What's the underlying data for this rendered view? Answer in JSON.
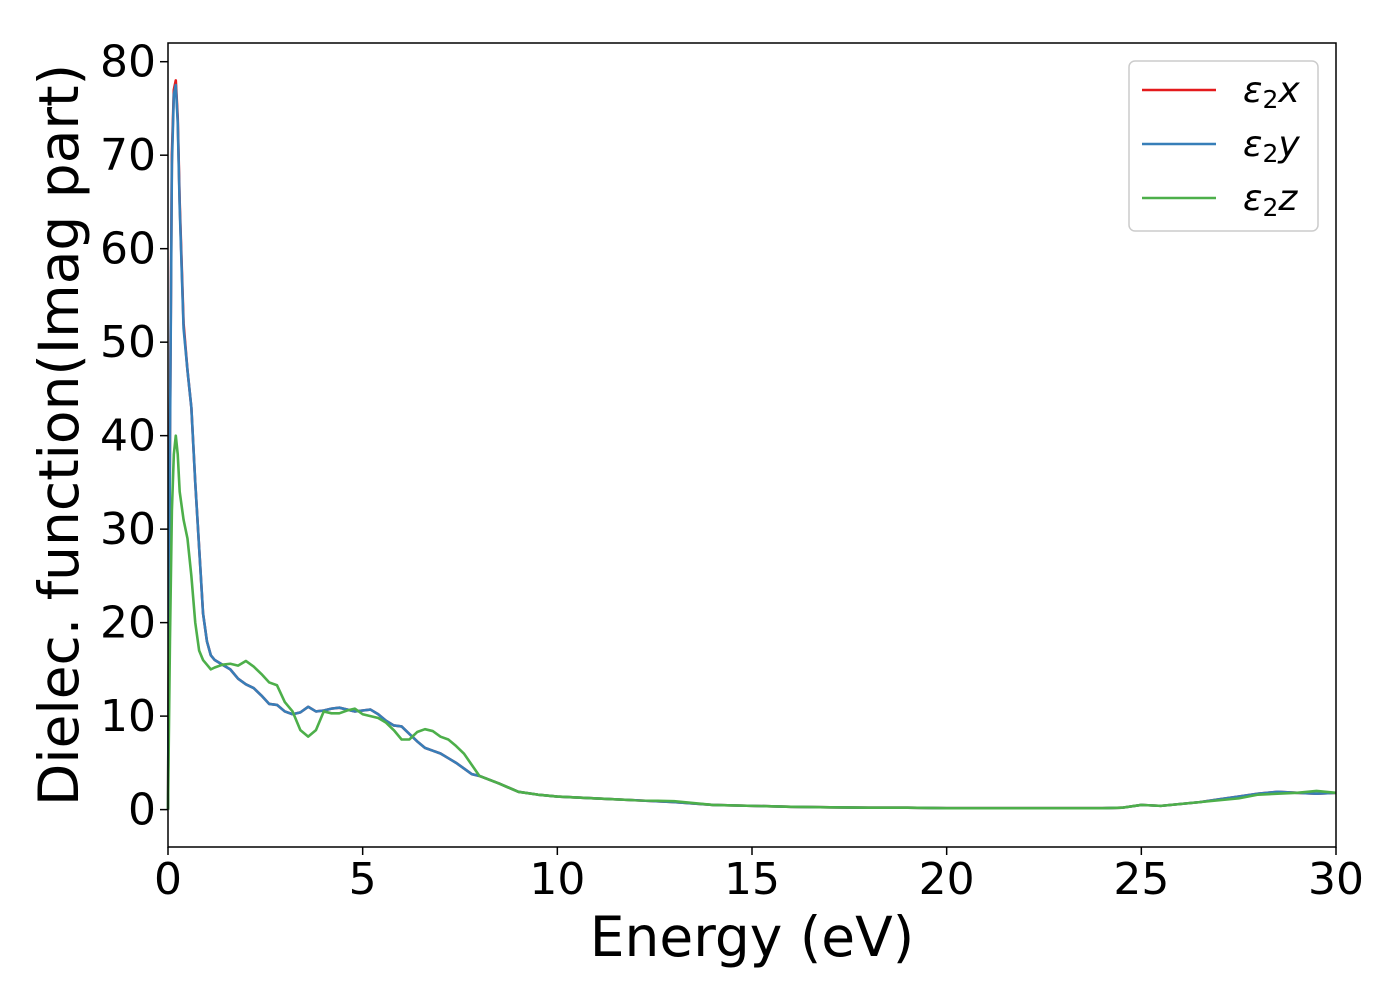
{
  "chart_data": {
    "type": "line",
    "title": "",
    "xlabel": "Energy (eV)",
    "ylabel": "Dielec. function(Imag part)",
    "xlim": [
      0,
      30
    ],
    "ylim": [
      -4,
      82
    ],
    "xticks": [
      0,
      5,
      10,
      15,
      20,
      25,
      30
    ],
    "yticks": [
      0,
      10,
      20,
      30,
      40,
      50,
      60,
      70,
      80
    ],
    "grid": false,
    "legend_position": "top-right",
    "series": [
      {
        "name": "ε2x",
        "legend_base": "ε",
        "legend_sub": "2",
        "legend_var": "x",
        "color": "#e41a1c",
        "x": [
          0,
          0.05,
          0.1,
          0.15,
          0.2,
          0.25,
          0.3,
          0.4,
          0.5,
          0.6,
          0.7,
          0.8,
          0.9,
          1.0,
          1.1,
          1.2,
          1.4,
          1.6,
          1.8,
          2.0,
          2.2,
          2.4,
          2.6,
          2.8,
          3.0,
          3.2,
          3.4,
          3.6,
          3.8,
          4.0,
          4.2,
          4.4,
          4.6,
          4.8,
          5.0,
          5.2,
          5.4,
          5.6,
          5.8,
          6.0,
          6.2,
          6.4,
          6.6,
          6.8,
          7.0,
          7.2,
          7.4,
          7.6,
          7.8,
          8.0,
          8.5,
          9.0,
          9.5,
          10,
          11,
          12,
          13,
          14,
          15,
          16,
          17,
          18,
          19,
          20,
          21,
          22,
          23,
          24,
          24.5,
          25,
          25.5,
          26,
          26.5,
          27,
          27.5,
          28,
          28.5,
          29,
          29.5,
          30
        ],
        "y": [
          0,
          40,
          70,
          77,
          78,
          74,
          65,
          52,
          47,
          43,
          35,
          28,
          21,
          18,
          16.5,
          16,
          15.5,
          15,
          14,
          13.4,
          13,
          12.2,
          11.3,
          11.2,
          10.5,
          10.2,
          10.4,
          11,
          10.5,
          10.6,
          10.8,
          10.9,
          10.7,
          10.5,
          10.6,
          10.7,
          10.2,
          9.5,
          9.0,
          8.9,
          8.1,
          7.3,
          6.6,
          6.3,
          6.0,
          5.5,
          5.0,
          4.4,
          3.8,
          3.6,
          2.8,
          1.9,
          1.6,
          1.4,
          1.2,
          1.0,
          0.8,
          0.5,
          0.4,
          0.3,
          0.25,
          0.2,
          0.2,
          0.15,
          0.15,
          0.15,
          0.15,
          0.15,
          0.2,
          0.5,
          0.4,
          0.6,
          0.8,
          1.1,
          1.4,
          1.7,
          1.9,
          1.8,
          1.7,
          1.8
        ]
      },
      {
        "name": "ε2y",
        "legend_base": "ε",
        "legend_sub": "2",
        "legend_var": "y",
        "color": "#377eb8",
        "x": [
          0,
          0.05,
          0.1,
          0.15,
          0.2,
          0.25,
          0.3,
          0.4,
          0.5,
          0.6,
          0.7,
          0.8,
          0.9,
          1.0,
          1.1,
          1.2,
          1.4,
          1.6,
          1.8,
          2.0,
          2.2,
          2.4,
          2.6,
          2.8,
          3.0,
          3.2,
          3.4,
          3.6,
          3.8,
          4.0,
          4.2,
          4.4,
          4.6,
          4.8,
          5.0,
          5.2,
          5.4,
          5.6,
          5.8,
          6.0,
          6.2,
          6.4,
          6.6,
          6.8,
          7.0,
          7.2,
          7.4,
          7.6,
          7.8,
          8.0,
          8.5,
          9.0,
          9.5,
          10,
          11,
          12,
          13,
          14,
          15,
          16,
          17,
          18,
          19,
          20,
          21,
          22,
          23,
          24,
          24.5,
          25,
          25.5,
          26,
          26.5,
          27,
          27.5,
          28,
          28.5,
          29,
          29.5,
          30
        ],
        "y": [
          0,
          39,
          69,
          76.5,
          77.5,
          73.5,
          64.5,
          51.5,
          47,
          43,
          35,
          28,
          21,
          18,
          16.5,
          16,
          15.5,
          15,
          14,
          13.4,
          13,
          12.2,
          11.3,
          11.2,
          10.5,
          10.2,
          10.4,
          11,
          10.5,
          10.6,
          10.8,
          10.9,
          10.7,
          10.5,
          10.6,
          10.7,
          10.2,
          9.5,
          9.0,
          8.9,
          8.1,
          7.3,
          6.6,
          6.3,
          6.0,
          5.5,
          5.0,
          4.4,
          3.8,
          3.6,
          2.8,
          1.9,
          1.6,
          1.4,
          1.2,
          1.0,
          0.8,
          0.5,
          0.4,
          0.3,
          0.25,
          0.2,
          0.2,
          0.15,
          0.15,
          0.15,
          0.15,
          0.15,
          0.2,
          0.5,
          0.4,
          0.6,
          0.8,
          1.1,
          1.4,
          1.7,
          1.9,
          1.8,
          1.7,
          1.8
        ]
      },
      {
        "name": "ε2z",
        "legend_base": "ε",
        "legend_sub": "2",
        "legend_var": "z",
        "color": "#4daf4a",
        "x": [
          0,
          0.05,
          0.1,
          0.15,
          0.2,
          0.25,
          0.3,
          0.4,
          0.5,
          0.6,
          0.7,
          0.8,
          0.9,
          1.0,
          1.1,
          1.2,
          1.4,
          1.6,
          1.8,
          2.0,
          2.2,
          2.4,
          2.6,
          2.8,
          3.0,
          3.2,
          3.4,
          3.6,
          3.8,
          4.0,
          4.2,
          4.4,
          4.6,
          4.8,
          5.0,
          5.2,
          5.4,
          5.6,
          5.8,
          6.0,
          6.2,
          6.4,
          6.6,
          6.8,
          7.0,
          7.2,
          7.4,
          7.6,
          7.8,
          8.0,
          8.5,
          9.0,
          9.5,
          10,
          11,
          12,
          13,
          14,
          15,
          16,
          17,
          18,
          19,
          20,
          21,
          22,
          23,
          24,
          24.5,
          25,
          25.5,
          26,
          26.5,
          27,
          27.5,
          28,
          28.5,
          29,
          29.5,
          30
        ],
        "y": [
          0,
          18,
          32,
          38,
          40,
          38,
          34,
          31,
          29,
          25,
          20,
          17,
          16,
          15.5,
          15,
          15.2,
          15.5,
          15.6,
          15.4,
          15.9,
          15.3,
          14.5,
          13.6,
          13.3,
          11.5,
          10.5,
          8.5,
          7.8,
          8.5,
          10.5,
          10.3,
          10.3,
          10.6,
          10.8,
          10.2,
          10.0,
          9.8,
          9.3,
          8.5,
          7.5,
          7.5,
          8.3,
          8.6,
          8.4,
          7.8,
          7.5,
          6.8,
          6.0,
          4.8,
          3.6,
          2.8,
          1.9,
          1.6,
          1.4,
          1.2,
          1.0,
          0.9,
          0.5,
          0.4,
          0.3,
          0.25,
          0.2,
          0.2,
          0.15,
          0.15,
          0.15,
          0.15,
          0.15,
          0.2,
          0.5,
          0.4,
          0.6,
          0.8,
          1.0,
          1.2,
          1.6,
          1.7,
          1.8,
          2.0,
          1.8
        ]
      }
    ]
  }
}
